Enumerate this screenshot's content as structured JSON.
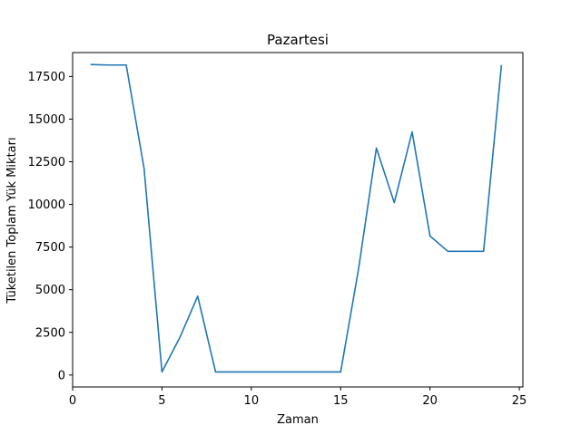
{
  "chart_data": {
    "type": "line",
    "title": "Pazartesi",
    "xlabel": "Zaman",
    "ylabel": "Tüketilen Toplam Yük Miktarı",
    "xlim": [
      0,
      25.2
    ],
    "ylim": [
      -700,
      18900
    ],
    "x_ticks": [
      0,
      5,
      10,
      15,
      20,
      25
    ],
    "y_ticks": [
      0,
      2500,
      5000,
      7500,
      10000,
      12500,
      15000,
      17500
    ],
    "grid": false,
    "legend": "none",
    "series": [
      {
        "color": "#1f77b4",
        "x": [
          1,
          2,
          3,
          4,
          5,
          6,
          7,
          8,
          9,
          10,
          11,
          12,
          13,
          14,
          15,
          16,
          17,
          18,
          19,
          20,
          21,
          22,
          23,
          24
        ],
        "y": [
          18200,
          18170,
          18170,
          12100,
          180,
          2200,
          4620,
          180,
          180,
          180,
          180,
          180,
          180,
          180,
          180,
          6200,
          13300,
          10100,
          14250,
          8150,
          7250,
          7250,
          7250,
          18170
        ]
      }
    ]
  }
}
